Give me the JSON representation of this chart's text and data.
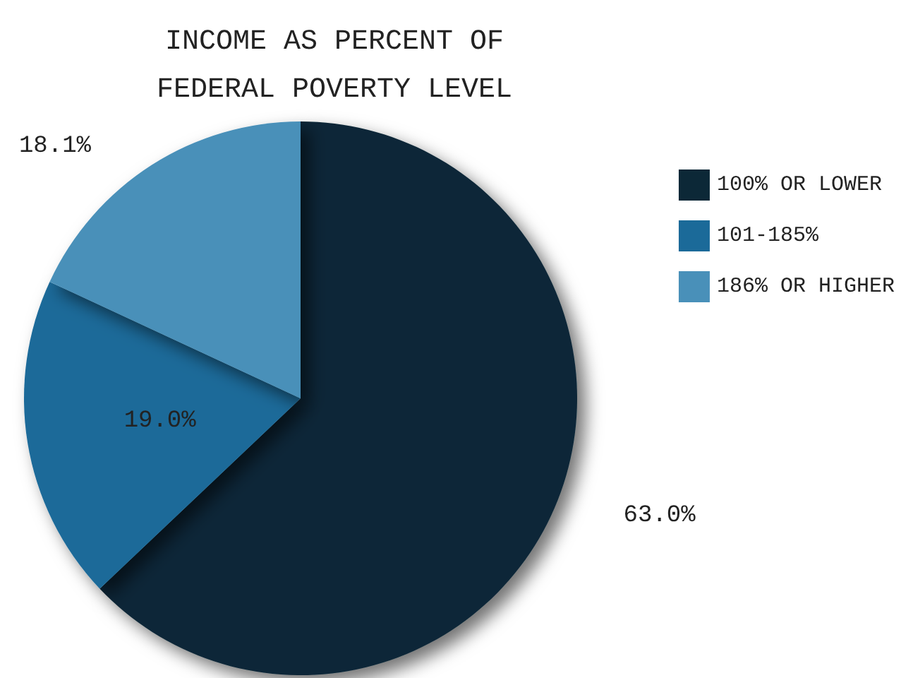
{
  "chart_data": {
    "type": "pie",
    "title": "INCOME AS PERCENT OF\nFEDERAL POVERTY LEVEL",
    "categories": [
      "100% OR LOWER",
      "101-185%",
      "186% OR HIGHER"
    ],
    "values": [
      63.0,
      19.0,
      18.1
    ],
    "colors": [
      "#0c2837",
      "#1b6a99",
      "#4990b9"
    ],
    "value_labels": [
      "63.0%",
      "19.0%",
      "18.1%"
    ],
    "legend": "right"
  }
}
